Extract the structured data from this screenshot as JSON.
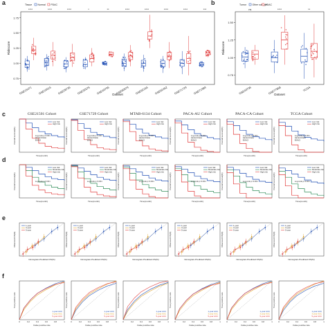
{
  "panel_labels": [
    "a",
    "b",
    "c",
    "d",
    "e",
    "f"
  ],
  "colors": {
    "normal": "#1f4eb4",
    "pdac": "#e03a3a",
    "low": "#1f4eb4",
    "high": "#e03a3a",
    "moderate": "#2e8b57",
    "y1": "#1f4eb4",
    "y3": "#e0a020",
    "y5": "#e03a3a"
  },
  "chart_data": [
    {
      "panel": "a",
      "type": "box",
      "xlabel": "Dataset",
      "ylabel": "Riskscore",
      "ylim": [
        0.65,
        1.85
      ],
      "yticks": [
        0.75,
        1.0,
        1.25,
        1.5,
        1.75
      ],
      "legend": {
        "title": "Tissue",
        "items": [
          "Normal",
          "PDAC"
        ]
      },
      "categories": [
        "GSE15471",
        "GSE16515",
        "GSE28735",
        "GSE32676",
        "GSE43795",
        "GSE60979",
        "GSE62165",
        "GSE62452",
        "GSE71729",
        "GSE71989"
      ],
      "significance": [
        "****",
        "****",
        "****",
        "*",
        "**",
        "****",
        "****",
        "****",
        "****",
        "***"
      ],
      "series": [
        {
          "name": "Normal",
          "medians": [
            0.98,
            1.02,
            0.99,
            0.98,
            1.0,
            1.0,
            1.0,
            1.0,
            1.0,
            0.98
          ],
          "q1": [
            0.93,
            0.96,
            0.94,
            0.94,
            0.98,
            0.95,
            0.95,
            0.94,
            0.95,
            0.96
          ],
          "q3": [
            1.04,
            1.08,
            1.04,
            1.05,
            1.02,
            1.07,
            1.05,
            1.04,
            1.06,
            1.01
          ],
          "min": [
            0.86,
            0.88,
            0.85,
            0.9,
            0.96,
            0.87,
            0.86,
            0.84,
            0.82,
            0.93
          ],
          "max": [
            1.12,
            1.15,
            1.1,
            1.1,
            1.03,
            1.16,
            1.14,
            1.12,
            1.2,
            1.03
          ]
        },
        {
          "name": "PDAC",
          "medians": [
            1.22,
            1.13,
            1.1,
            1.08,
            1.15,
            1.12,
            1.45,
            1.12,
            1.08,
            1.17
          ],
          "q1": [
            1.16,
            1.07,
            1.04,
            1.02,
            1.12,
            1.06,
            1.4,
            1.06,
            1.0,
            1.14
          ],
          "q3": [
            1.28,
            1.2,
            1.17,
            1.14,
            1.18,
            1.18,
            1.52,
            1.18,
            1.16,
            1.2
          ],
          "min": [
            1.05,
            0.95,
            0.94,
            0.95,
            1.1,
            0.95,
            1.25,
            0.92,
            0.8,
            1.1
          ],
          "max": [
            1.42,
            1.35,
            1.32,
            1.25,
            1.2,
            1.3,
            1.8,
            1.35,
            1.45,
            1.22
          ]
        }
      ]
    },
    {
      "panel": "b",
      "type": "box",
      "xlabel": "Dataset",
      "ylabel": "Riskscore",
      "ylim": [
        0.62,
        1.65
      ],
      "yticks": [
        0.75,
        1.0,
        1.25,
        1.5
      ],
      "legend": {
        "title": "Tumor",
        "items": [
          "Other subtype",
          "PDAC"
        ]
      },
      "categories": [
        "GSE43795",
        "GSE77858",
        "TCGA"
      ],
      "significance": [
        "ns",
        "****",
        "**"
      ],
      "series": [
        {
          "name": "Other subtype",
          "medians": [
            1.01,
            1.0,
            1.02
          ],
          "q1": [
            0.95,
            0.94,
            0.94
          ],
          "q3": [
            1.07,
            1.08,
            1.12
          ],
          "min": [
            0.85,
            0.78,
            0.7
          ],
          "max": [
            1.15,
            1.25,
            1.35
          ]
        },
        {
          "name": "PDAC",
          "medians": [
            1.05,
            1.25,
            1.09
          ],
          "q1": [
            0.98,
            1.12,
            1.0
          ],
          "q3": [
            1.1,
            1.36,
            1.2
          ],
          "min": [
            0.9,
            0.9,
            0.72
          ],
          "max": [
            1.18,
            1.6,
            1.48
          ]
        }
      ]
    },
    {
      "panel": "c",
      "type": "line",
      "title_row": [
        "GSE21501 Cohort",
        "GSE71729 Cohort",
        "MTAB-6134 Cohort",
        "PACA-AU Cohort",
        "PACA-CA Cohort",
        "TCGA Cohort"
      ],
      "xlabel": "Time(month)",
      "ylabel": "Overall survival(%)",
      "legend": [
        "Low risk",
        "High risk"
      ],
      "series": [
        {
          "name": "Low risk",
          "values": [
            1.0,
            0.88,
            0.74,
            0.62,
            0.55,
            0.5,
            0.46,
            0.43
          ]
        },
        {
          "name": "High risk",
          "values": [
            1.0,
            0.7,
            0.42,
            0.27,
            0.18,
            0.14,
            0.12,
            0.1
          ]
        }
      ],
      "annotation": [
        "Log-rank p<0.001",
        "Hazard Ratio",
        "95%CI"
      ]
    },
    {
      "panel": "d",
      "type": "line",
      "xlabel": "Time(month)",
      "ylabel": "Overall survival(%)",
      "legend": [
        "Low risk",
        "Moderate risk",
        "High risk"
      ],
      "series": [
        {
          "name": "Low risk",
          "values": [
            1.0,
            0.92,
            0.82,
            0.72,
            0.64,
            0.58,
            0.55,
            0.52
          ]
        },
        {
          "name": "Moderate risk",
          "values": [
            1.0,
            0.82,
            0.62,
            0.48,
            0.38,
            0.32,
            0.28,
            0.26
          ]
        },
        {
          "name": "High risk",
          "values": [
            1.0,
            0.66,
            0.38,
            0.24,
            0.16,
            0.12,
            0.1,
            0.08
          ]
        }
      ],
      "annotation": [
        "Log-rank p<0.001"
      ]
    },
    {
      "panel": "e",
      "type": "scatter",
      "xlabel": "Nomogram-Predicted OS(%)",
      "ylabel": "Observed OS(%)",
      "legend": [
        "1-year",
        "3-year",
        "5-year"
      ],
      "series": [
        {
          "name": "1-year",
          "x": [
            0.35,
            0.55,
            0.72,
            0.85
          ],
          "y": [
            0.32,
            0.52,
            0.74,
            0.86
          ]
        },
        {
          "name": "3-year",
          "x": [
            0.15,
            0.28,
            0.42,
            0.55
          ],
          "y": [
            0.12,
            0.3,
            0.4,
            0.58
          ]
        },
        {
          "name": "5-year",
          "x": [
            0.08,
            0.18,
            0.3,
            0.42
          ],
          "y": [
            0.06,
            0.2,
            0.26,
            0.44
          ]
        }
      ]
    },
    {
      "panel": "f",
      "type": "line",
      "xlabel": "False positive rate",
      "ylabel": "True positive rate",
      "xticks": [
        "0",
        "0.2",
        "0.4",
        "0.6",
        "0.8",
        "1"
      ],
      "legend": [
        "1-year AUC",
        "3-year AUC",
        "5-year AUC"
      ],
      "series": [
        {
          "name": "1-year",
          "x": [
            0,
            0.1,
            0.25,
            0.4,
            0.6,
            0.8,
            1
          ],
          "y": [
            0,
            0.3,
            0.52,
            0.68,
            0.82,
            0.93,
            1
          ]
        },
        {
          "name": "3-year",
          "x": [
            0,
            0.1,
            0.25,
            0.4,
            0.6,
            0.8,
            1
          ],
          "y": [
            0,
            0.28,
            0.5,
            0.66,
            0.8,
            0.92,
            1
          ]
        },
        {
          "name": "5-year",
          "x": [
            0,
            0.1,
            0.25,
            0.4,
            0.6,
            0.8,
            1
          ],
          "y": [
            0,
            0.34,
            0.56,
            0.72,
            0.85,
            0.95,
            1
          ]
        }
      ]
    }
  ]
}
